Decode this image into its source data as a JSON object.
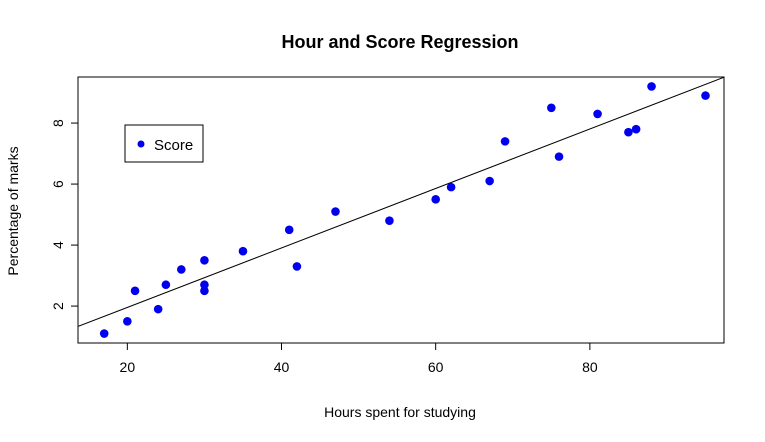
{
  "chart_data": {
    "type": "scatter",
    "title": "Hour and Score Regression",
    "xlabel": "Hours spent for studying",
    "ylabel": "Percentage of marks",
    "xlim": [
      13.6,
      97.4
    ],
    "ylim": [
      0.79,
      9.51
    ],
    "x_ticks": [
      20,
      40,
      60,
      80
    ],
    "y_ticks": [
      2,
      4,
      6,
      8
    ],
    "x_tick_labels": [
      "20",
      "40",
      "60",
      "80"
    ],
    "y_tick_labels": [
      "2",
      "4",
      "6",
      "8"
    ],
    "series": [
      {
        "name": "Score",
        "color": "#0000ee",
        "points": [
          {
            "x": 17,
            "y": 1.1
          },
          {
            "x": 20,
            "y": 1.5
          },
          {
            "x": 21,
            "y": 2.5
          },
          {
            "x": 24,
            "y": 1.9
          },
          {
            "x": 25,
            "y": 2.7
          },
          {
            "x": 27,
            "y": 3.2
          },
          {
            "x": 30,
            "y": 3.5
          },
          {
            "x": 30,
            "y": 2.7
          },
          {
            "x": 30,
            "y": 2.5
          },
          {
            "x": 35,
            "y": 3.8
          },
          {
            "x": 41,
            "y": 4.5
          },
          {
            "x": 42,
            "y": 3.3
          },
          {
            "x": 47,
            "y": 5.1
          },
          {
            "x": 54,
            "y": 4.8
          },
          {
            "x": 60,
            "y": 5.5
          },
          {
            "x": 62,
            "y": 5.9
          },
          {
            "x": 67,
            "y": 6.1
          },
          {
            "x": 69,
            "y": 7.4
          },
          {
            "x": 75,
            "y": 8.5
          },
          {
            "x": 76,
            "y": 6.9
          },
          {
            "x": 81,
            "y": 8.3
          },
          {
            "x": 85,
            "y": 7.7
          },
          {
            "x": 86,
            "y": 7.8
          },
          {
            "x": 88,
            "y": 9.2
          },
          {
            "x": 95,
            "y": 8.9
          }
        ]
      }
    ],
    "regression_line": {
      "intercept": 0.006,
      "slope": 0.0975,
      "color": "#000000"
    },
    "legend": {
      "entries": [
        "Score"
      ],
      "placement": "top-left"
    },
    "grid": false
  }
}
